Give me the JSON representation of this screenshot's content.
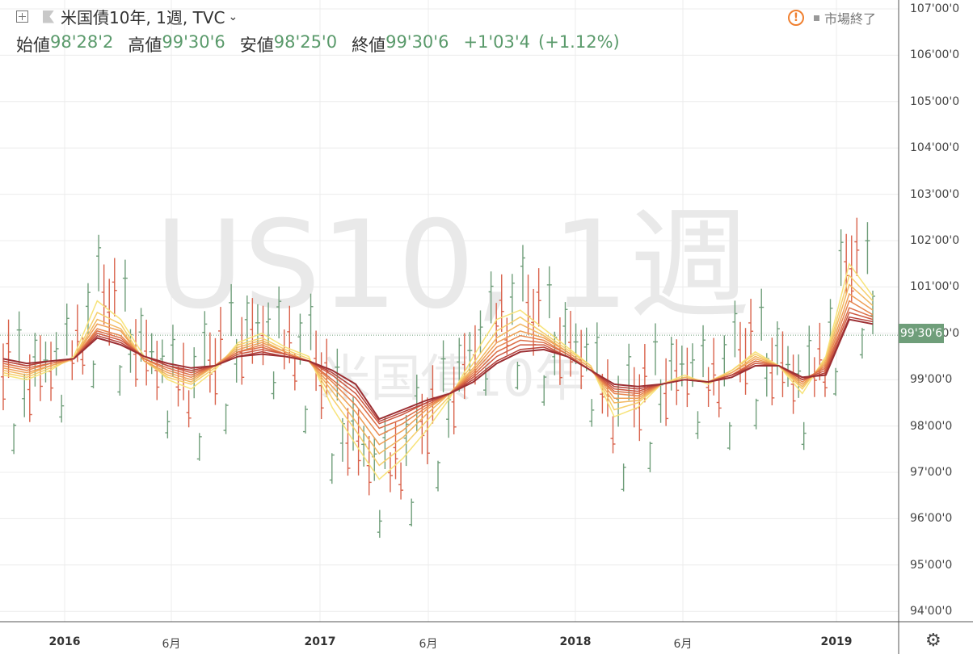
{
  "header": {
    "symbol_title": "米国債10年, 1週, TVC",
    "open_label": "始値",
    "open_value": "98'28'2",
    "high_label": "高値",
    "high_value": "99'30'6",
    "low_label": "安値",
    "low_value": "98'25'0",
    "close_label": "終値",
    "close_value": "99'30'6",
    "change": "+1'03'4",
    "change_pct": "(+1.12%)"
  },
  "status": {
    "market_label": "市場終了"
  },
  "watermark": {
    "main": "US10, 1週",
    "sub": "米国債10年"
  },
  "last_price_label": "99'30'6",
  "icons": {
    "plus": "plus-square-icon",
    "flag": "flag-icon",
    "warning": "warning-icon",
    "settings": "gear-icon"
  },
  "colors": {
    "up": "#6f9e7a",
    "down": "#d9624b",
    "ribbon": [
      "#f7e37a",
      "#f6cf6c",
      "#f2b760",
      "#ee9f56",
      "#e7864e",
      "#dc6e47",
      "#cd5840",
      "#b7423a",
      "#9c2f33"
    ]
  },
  "chart_data": {
    "type": "ohlc_bar",
    "interval": "1 week",
    "x_tick_labels": [
      "2016",
      "6月",
      "2017",
      "6月",
      "2018",
      "6月",
      "2019"
    ],
    "y_tick_labels": [
      "107'00'0",
      "106'00'0",
      "105'00'0",
      "104'00'0",
      "103'00'0",
      "102'00'0",
      "101'00'0",
      "100'00'0",
      "99'00'0",
      "98'00'0",
      "97'00'0",
      "96'00'0",
      "95'00'0",
      "94'00'0"
    ],
    "ylim": [
      93.8,
      107.1
    ],
    "last_price": 99.96,
    "grid": true,
    "ribbon_series": [
      {
        "values": [
          99.1,
          99.0,
          99.2,
          99.5,
          100.7,
          100.3,
          99.5,
          99.0,
          98.8,
          99.2,
          99.8,
          100.0,
          99.7,
          99.5,
          98.4,
          97.6,
          96.85,
          97.3,
          97.9,
          98.6,
          99.5,
          100.3,
          100.5,
          100.1,
          99.7,
          99.3,
          98.2,
          98.4,
          98.9,
          99.1,
          98.9,
          99.2,
          99.6,
          99.3,
          98.7,
          99.5,
          101.5,
          100.8
        ]
      },
      {
        "values": [
          99.15,
          99.05,
          99.25,
          99.45,
          100.45,
          100.2,
          99.4,
          99.05,
          98.9,
          99.25,
          99.75,
          99.9,
          99.65,
          99.45,
          98.6,
          97.9,
          97.15,
          97.55,
          98.1,
          98.65,
          99.35,
          100.05,
          100.35,
          100.0,
          99.65,
          99.3,
          98.35,
          98.5,
          98.9,
          99.05,
          98.95,
          99.2,
          99.55,
          99.3,
          98.8,
          99.45,
          101.25,
          100.7
        ]
      },
      {
        "values": [
          99.2,
          99.1,
          99.3,
          99.45,
          100.3,
          100.1,
          99.4,
          99.1,
          98.95,
          99.3,
          99.7,
          99.85,
          99.6,
          99.4,
          98.75,
          98.1,
          97.4,
          97.75,
          98.25,
          98.7,
          99.25,
          99.9,
          100.2,
          99.95,
          99.6,
          99.25,
          98.5,
          98.55,
          98.9,
          99.05,
          98.95,
          99.15,
          99.5,
          99.3,
          98.85,
          99.4,
          101.05,
          100.6
        ]
      },
      {
        "values": [
          99.25,
          99.15,
          99.3,
          99.45,
          100.2,
          100.05,
          99.4,
          99.15,
          99.0,
          99.3,
          99.65,
          99.8,
          99.6,
          99.4,
          98.85,
          98.3,
          97.6,
          97.9,
          98.35,
          98.7,
          99.2,
          99.8,
          100.05,
          99.9,
          99.6,
          99.25,
          98.6,
          98.6,
          98.9,
          99.0,
          98.95,
          99.15,
          99.45,
          99.3,
          98.9,
          99.35,
          100.85,
          100.5
        ]
      },
      {
        "values": [
          99.3,
          99.2,
          99.35,
          99.45,
          100.1,
          99.95,
          99.45,
          99.2,
          99.05,
          99.3,
          99.6,
          99.75,
          99.55,
          99.4,
          98.95,
          98.45,
          97.8,
          98.05,
          98.4,
          98.7,
          99.15,
          99.7,
          99.95,
          99.85,
          99.55,
          99.2,
          98.7,
          98.65,
          98.9,
          99.0,
          98.95,
          99.1,
          99.4,
          99.3,
          98.95,
          99.3,
          100.7,
          100.4
        ]
      },
      {
        "values": [
          99.35,
          99.25,
          99.35,
          99.45,
          100.05,
          99.9,
          99.45,
          99.25,
          99.1,
          99.3,
          99.6,
          99.7,
          99.55,
          99.4,
          99.0,
          98.6,
          97.95,
          98.15,
          98.45,
          98.7,
          99.1,
          99.6,
          99.85,
          99.8,
          99.55,
          99.2,
          98.75,
          98.7,
          98.9,
          99.0,
          98.95,
          99.1,
          99.4,
          99.3,
          99.0,
          99.25,
          100.55,
          100.35
        ]
      },
      {
        "values": [
          99.4,
          99.3,
          99.4,
          99.45,
          100.0,
          99.85,
          99.5,
          99.3,
          99.15,
          99.3,
          99.55,
          99.65,
          99.55,
          99.4,
          99.1,
          98.7,
          98.05,
          98.25,
          98.5,
          98.7,
          99.05,
          99.5,
          99.75,
          99.75,
          99.5,
          99.2,
          98.8,
          98.75,
          98.9,
          99.0,
          98.95,
          99.1,
          99.35,
          99.3,
          99.0,
          99.2,
          100.45,
          100.3
        ]
      },
      {
        "values": [
          99.4,
          99.3,
          99.4,
          99.45,
          99.95,
          99.8,
          99.5,
          99.3,
          99.2,
          99.3,
          99.5,
          99.6,
          99.5,
          99.4,
          99.15,
          98.8,
          98.1,
          98.3,
          98.5,
          98.7,
          99.0,
          99.4,
          99.65,
          99.7,
          99.5,
          99.2,
          98.85,
          98.8,
          98.9,
          99.0,
          98.95,
          99.1,
          99.3,
          99.3,
          99.0,
          99.15,
          100.35,
          100.25
        ]
      },
      {
        "values": [
          99.45,
          99.35,
          99.4,
          99.45,
          99.9,
          99.75,
          99.5,
          99.35,
          99.25,
          99.3,
          99.5,
          99.55,
          99.5,
          99.4,
          99.2,
          98.9,
          98.15,
          98.35,
          98.55,
          98.7,
          98.95,
          99.35,
          99.6,
          99.65,
          99.5,
          99.2,
          98.9,
          98.85,
          98.9,
          99.0,
          98.95,
          99.05,
          99.3,
          99.3,
          99.05,
          99.1,
          100.3,
          100.2
        ]
      }
    ]
  }
}
